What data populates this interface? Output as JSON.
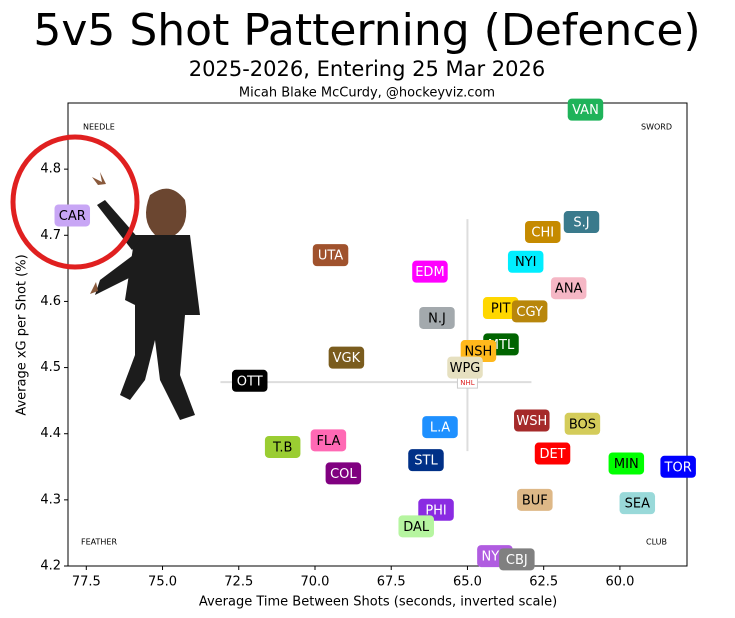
{
  "chart_data": {
    "type": "scatter",
    "title": "5v5 Shot Patterning (Defence)",
    "subtitle": "2025-2026, Entering 25 Mar 2026",
    "byline": "Micah Blake McCurdy, @hockeyviz.com",
    "x_label": "Average Time Between Shots (seconds, inverted scale)",
    "y_label": "Average xG per Shot (%)",
    "corner_labels": {
      "top_left": "NEEDLE",
      "top_right": "SWORD",
      "bottom_left": "FEATHER",
      "bottom_right": "CLUB"
    },
    "center_logo": "NHL",
    "reference": {
      "x": 65.0,
      "y": 4.478
    },
    "xlim": [
      78.1,
      57.8
    ],
    "ylim": [
      4.2,
      4.9
    ],
    "xticks": [
      77.5,
      {
        "value": 75,
        "label": "75.0"
      },
      72.5,
      {
        "value": 70,
        "label": "70.0"
      },
      67.5,
      {
        "value": 65,
        "label": "65.0"
      },
      62.5,
      {
        "value": 60,
        "label": "60.0"
      }
    ],
    "yticks": [
      4.2,
      4.3,
      4.4,
      4.5,
      4.6,
      4.7,
      4.8
    ],
    "labels": [
      "VAN",
      "S.J",
      "CHI",
      "NYI",
      "ANA",
      "EDM",
      "UTA",
      "CAR",
      "PIT",
      "CGY",
      "N.J",
      "MTL",
      "NSH",
      "WPG",
      "VGK",
      "OTT",
      "WSH",
      "BOS",
      "L.A",
      "DET",
      "FLA",
      "T.B",
      "STL",
      "MIN",
      "TOR",
      "COL",
      "BUF",
      "SEA",
      "PHI",
      "DAL",
      "NYR",
      "CBJ"
    ],
    "x": [
      61.13,
      61.26,
      62.53,
      63.09,
      61.68,
      66.23,
      69.49,
      77.96,
      63.91,
      62.96,
      66.0,
      63.9,
      64.64,
      65.08,
      68.97,
      72.14,
      62.89,
      61.23,
      65.9,
      62.21,
      69.56,
      71.06,
      66.36,
      59.79,
      58.09,
      69.07,
      62.79,
      59.43,
      66.03,
      66.68,
      64.1,
      63.38
    ],
    "values": [
      4.89,
      4.72,
      4.705,
      4.66,
      4.62,
      4.645,
      4.67,
      4.73,
      4.59,
      4.585,
      4.575,
      4.535,
      4.525,
      4.5,
      4.515,
      4.48,
      4.42,
      4.415,
      4.41,
      4.37,
      4.39,
      4.38,
      4.36,
      4.355,
      4.35,
      4.34,
      4.3,
      4.295,
      4.285,
      4.26,
      4.215,
      4.21
    ],
    "colors": [
      "#1fb35a",
      "#3a7a8c",
      "#c58a00",
      "#00eeff",
      "#f5b7c5",
      "#ff00ff",
      "#a0522d",
      "#c8a6f5",
      "#ffd700",
      "#b8860b",
      "#a3a9ad",
      "#006400",
      "#ffb81c",
      "#e6e0c0",
      "#7a5c1e",
      "#000000",
      "#a52a2a",
      "#d4cc5a",
      "#1e90ff",
      "#ff0000",
      "#ff69b4",
      "#9acd32",
      "#003087",
      "#00ff00",
      "#0000ff",
      "#800080",
      "#deb887",
      "#99d9d9",
      "#8a2be2",
      "#b6f5a0",
      "#b05ce0",
      "#808080"
    ]
  }
}
